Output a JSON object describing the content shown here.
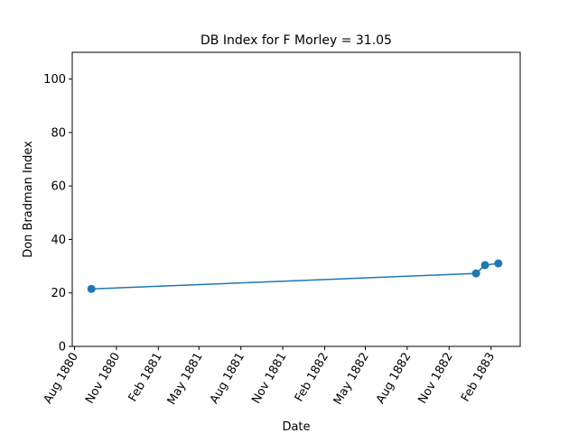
{
  "chart_data": {
    "type": "line",
    "title": "DB Index for F Morley = 31.05",
    "xlabel": "Date",
    "ylabel": "Don Bradman Index",
    "ylim": [
      0,
      110
    ],
    "xlim": [
      "1880-07-27",
      "1883-04-06"
    ],
    "yticks": [
      0,
      20,
      40,
      60,
      80,
      100
    ],
    "xticks": [
      {
        "date": "1880-08-01",
        "label": "Aug 1880"
      },
      {
        "date": "1880-11-01",
        "label": "Nov 1880"
      },
      {
        "date": "1881-02-01",
        "label": "Feb 1881"
      },
      {
        "date": "1881-05-01",
        "label": "May 1881"
      },
      {
        "date": "1881-08-01",
        "label": "Aug 1881"
      },
      {
        "date": "1881-11-01",
        "label": "Nov 1881"
      },
      {
        "date": "1882-02-01",
        "label": "Feb 1882"
      },
      {
        "date": "1882-05-01",
        "label": "May 1882"
      },
      {
        "date": "1882-08-01",
        "label": "Aug 1882"
      },
      {
        "date": "1882-11-01",
        "label": "Nov 1882"
      },
      {
        "date": "1883-02-01",
        "label": "Feb 1883"
      }
    ],
    "series": [
      {
        "color": "#1f77b4",
        "points": [
          {
            "x": "1880-09-07",
            "y": 21.5
          },
          {
            "x": "1882-12-30",
            "y": 27.3
          },
          {
            "x": "1883-01-19",
            "y": 30.4
          },
          {
            "x": "1883-02-17",
            "y": 31.05
          }
        ]
      }
    ],
    "grid": false,
    "legend": "none"
  }
}
